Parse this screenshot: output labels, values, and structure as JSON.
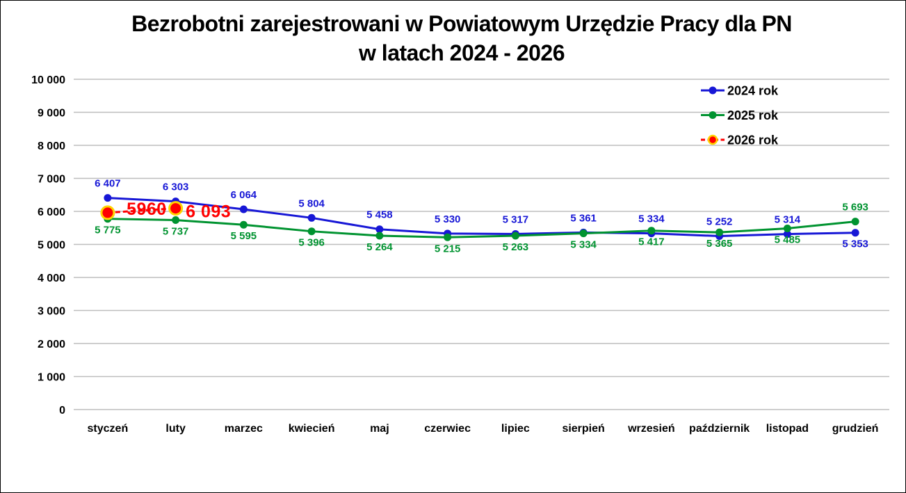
{
  "title": {
    "line1": "Bezrobotni zarejestrowani w Powiatowym Urzędzie Pracy dla PN",
    "line2": "w latach 2024 - 2026"
  },
  "chart_data": {
    "type": "line",
    "title": "Bezrobotni zarejestrowani w Powiatowym Urzędzie Pracy dla PN w latach 2024 - 2026",
    "categories": [
      "styczeń",
      "luty",
      "marzec",
      "kwiecień",
      "maj",
      "czerwiec",
      "lipiec",
      "sierpień",
      "wrzesień",
      "październik",
      "listopad",
      "grudzień"
    ],
    "y_axis": {
      "min": 0,
      "max": 10000,
      "step": 1000,
      "tick_labels": [
        "0",
        "1 000",
        "2 000",
        "3 000",
        "4 000",
        "5 000",
        "6 000",
        "7 000",
        "8 000",
        "9 000",
        "10 000"
      ]
    },
    "grid": true,
    "grid_color": "#BDBDBD",
    "background": "#FFFFFF",
    "legend": {
      "position": "top-right"
    },
    "series": [
      {
        "name": "2024 rok",
        "color": "#1717D6",
        "line_style": "solid",
        "marker": "circle",
        "marker_radius": 5.5,
        "values": [
          6407,
          6303,
          6064,
          5804,
          5458,
          5330,
          5317,
          5361,
          5334,
          5252,
          5314,
          5353
        ],
        "labels": [
          "6 407",
          "6 303",
          "6 064",
          "5 804",
          "5 458",
          "5 330",
          "5 317",
          "5 361",
          "5 334",
          "5 252",
          "5 314",
          "5 353"
        ],
        "label_sides": [
          "above",
          "above",
          "above",
          "above",
          "above",
          "above",
          "above",
          "above",
          "above",
          "above",
          "above",
          "below"
        ]
      },
      {
        "name": "2025 rok",
        "color": "#009330",
        "line_style": "solid",
        "marker": "circle",
        "marker_radius": 5.5,
        "values": [
          5775,
          5737,
          5595,
          5396,
          5264,
          5215,
          5263,
          5334,
          5417,
          5365,
          5485,
          5693
        ],
        "labels": [
          "5 775",
          "5 737",
          "5 595",
          "5 396",
          "5 264",
          "5 215",
          "5 263",
          "5 334",
          "5 417",
          "5 365",
          "5 485",
          "5 693"
        ],
        "label_sides": [
          "below",
          "below",
          "below",
          "below",
          "below",
          "below",
          "below",
          "below",
          "below",
          "below",
          "below",
          "above"
        ]
      },
      {
        "name": "2026 rok",
        "color": "#FF0000",
        "ring_color": "#FFD400",
        "line_style": "dashed",
        "marker": "circle",
        "marker_radius": 9,
        "values": [
          5960,
          6093,
          null,
          null,
          null,
          null,
          null,
          null,
          null,
          null,
          null,
          null
        ],
        "labels": [
          "5960",
          "6 093"
        ],
        "label_size": "big",
        "label_offsets": [
          {
            "dx": 56,
            "dy": 3
          },
          {
            "dx": 47,
            "dy": 13
          }
        ]
      }
    ]
  }
}
